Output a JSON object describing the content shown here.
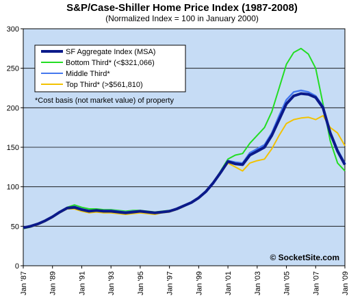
{
  "chart_data": {
    "type": "line",
    "title": "S&P/Case-Shiller Home Price Index (1987-2008)",
    "subtitle": "(Normalized Index = 100 in January 2000)",
    "ylim": [
      0,
      300
    ],
    "yticks": [
      0,
      50,
      100,
      150,
      200,
      250,
      300
    ],
    "xlim": [
      1987.0,
      2009.0
    ],
    "xticks": [
      {
        "value": 1987.0,
        "label": "Jan '87"
      },
      {
        "value": 1989.0,
        "label": "Jan '89"
      },
      {
        "value": 1991.0,
        "label": "Jan '91"
      },
      {
        "value": 1993.0,
        "label": "Jan '93"
      },
      {
        "value": 1995.0,
        "label": "Jan '95"
      },
      {
        "value": 1997.0,
        "label": "Jan '97"
      },
      {
        "value": 1999.0,
        "label": "Jan '99"
      },
      {
        "value": 2001.0,
        "label": "Jan '01"
      },
      {
        "value": 2003.0,
        "label": "Jan '03"
      },
      {
        "value": 2005.0,
        "label": "Jan '05"
      },
      {
        "value": 2007.0,
        "label": "Jan '07"
      },
      {
        "value": 2009.0,
        "label": "Jan '09"
      }
    ],
    "grid": "horizontal",
    "legend_position": "top-left",
    "plot_background": "#c6dcf5",
    "series": [
      {
        "name": "SF Aggregate Index (MSA)",
        "color": "#0b1a8a",
        "x": [
          1987.0,
          1987.5,
          1988.0,
          1988.5,
          1989.0,
          1989.5,
          1990.0,
          1990.5,
          1991.0,
          1991.5,
          1992.0,
          1992.5,
          1993.0,
          1993.5,
          1994.0,
          1994.5,
          1995.0,
          1995.5,
          1996.0,
          1996.5,
          1997.0,
          1997.5,
          1998.0,
          1998.5,
          1999.0,
          1999.5,
          2000.0,
          2000.5,
          2001.0,
          2001.5,
          2002.0,
          2002.5,
          2003.0,
          2003.5,
          2004.0,
          2004.5,
          2005.0,
          2005.5,
          2006.0,
          2006.5,
          2007.0,
          2007.5,
          2008.0,
          2008.5,
          2009.0
        ],
        "values": [
          48,
          50,
          53,
          57,
          62,
          68,
          73,
          74,
          71,
          69,
          70,
          69,
          69,
          68,
          67,
          68,
          69,
          68,
          67,
          68,
          69,
          72,
          76,
          80,
          86,
          94,
          105,
          118,
          132,
          129,
          128,
          140,
          145,
          150,
          165,
          185,
          205,
          215,
          218,
          217,
          213,
          200,
          168,
          145,
          128
        ]
      },
      {
        "name": "Bottom Third* (<$321,066)",
        "color": "#22dd22",
        "x": [
          1987.0,
          1987.5,
          1988.0,
          1988.5,
          1989.0,
          1989.5,
          1990.0,
          1990.5,
          1991.0,
          1991.5,
          1992.0,
          1992.5,
          1993.0,
          1993.5,
          1994.0,
          1994.5,
          1995.0,
          1995.5,
          1996.0,
          1996.5,
          1997.0,
          1997.5,
          1998.0,
          1998.5,
          1999.0,
          1999.5,
          2000.0,
          2000.5,
          2001.0,
          2001.5,
          2002.0,
          2002.5,
          2003.0,
          2003.5,
          2004.0,
          2004.5,
          2005.0,
          2005.5,
          2006.0,
          2006.5,
          2007.0,
          2007.5,
          2008.0,
          2008.5,
          2009.0
        ],
        "values": [
          47,
          49,
          53,
          57,
          62,
          68,
          74,
          77,
          74,
          72,
          72,
          71,
          71,
          70,
          69,
          70,
          70,
          69,
          68,
          69,
          70,
          72,
          76,
          80,
          86,
          94,
          105,
          120,
          135,
          140,
          142,
          155,
          165,
          175,
          195,
          225,
          255,
          270,
          275,
          268,
          250,
          205,
          158,
          130,
          120
        ]
      },
      {
        "name": "Middle Third*",
        "color": "#4477ee",
        "x": [
          1987.0,
          1987.5,
          1988.0,
          1988.5,
          1989.0,
          1989.5,
          1990.0,
          1990.5,
          1991.0,
          1991.5,
          1992.0,
          1992.5,
          1993.0,
          1993.5,
          1994.0,
          1994.5,
          1995.0,
          1995.5,
          1996.0,
          1996.5,
          1997.0,
          1997.5,
          1998.0,
          1998.5,
          1999.0,
          1999.5,
          2000.0,
          2000.5,
          2001.0,
          2001.5,
          2002.0,
          2002.5,
          2003.0,
          2003.5,
          2004.0,
          2004.5,
          2005.0,
          2005.5,
          2006.0,
          2006.5,
          2007.0,
          2007.5,
          2008.0,
          2008.5,
          2009.0
        ],
        "values": [
          48,
          50,
          53,
          57,
          62,
          68,
          73,
          75,
          72,
          70,
          70,
          70,
          70,
          69,
          68,
          69,
          69,
          68,
          67,
          68,
          69,
          72,
          76,
          80,
          86,
          94,
          105,
          118,
          133,
          131,
          130,
          143,
          148,
          153,
          168,
          190,
          210,
          220,
          222,
          220,
          215,
          202,
          170,
          147,
          130
        ]
      },
      {
        "name": "Top Third* (>$561,810)",
        "color": "#f2c200",
        "x": [
          1987.0,
          1987.5,
          1988.0,
          1988.5,
          1989.0,
          1989.5,
          1990.0,
          1990.5,
          1991.0,
          1991.5,
          1992.0,
          1992.5,
          1993.0,
          1993.5,
          1994.0,
          1994.5,
          1995.0,
          1995.5,
          1996.0,
          1996.5,
          1997.0,
          1997.5,
          1998.0,
          1998.5,
          1999.0,
          1999.5,
          2000.0,
          2000.5,
          2001.0,
          2001.5,
          2002.0,
          2002.5,
          2003.0,
          2003.5,
          2004.0,
          2004.5,
          2005.0,
          2005.5,
          2006.0,
          2006.5,
          2007.0,
          2007.5,
          2008.0,
          2008.5,
          2009.0
        ],
        "values": [
          47,
          49,
          52,
          56,
          61,
          67,
          72,
          72,
          69,
          67,
          68,
          67,
          67,
          66,
          65,
          66,
          67,
          66,
          65,
          67,
          68,
          71,
          75,
          80,
          86,
          95,
          105,
          117,
          130,
          125,
          120,
          130,
          133,
          135,
          148,
          165,
          180,
          185,
          187,
          188,
          185,
          190,
          175,
          168,
          152
        ]
      }
    ],
    "annotation": "*Cost basis (not market value) of property",
    "watermark": "© SocketSite.com"
  }
}
